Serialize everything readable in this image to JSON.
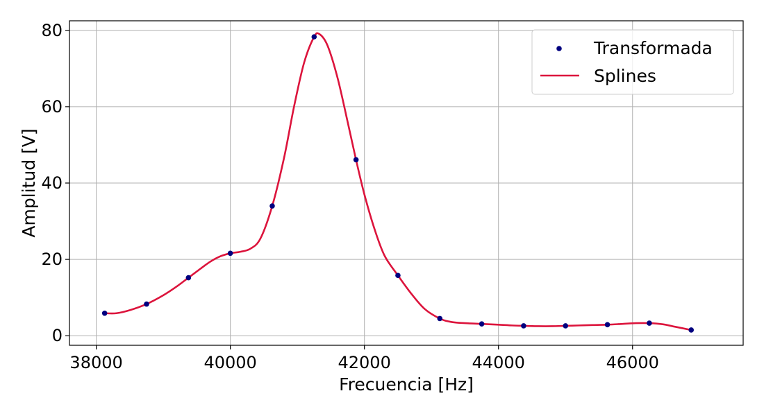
{
  "chart_data": {
    "type": "line",
    "title": "",
    "xlabel": "Frecuencia [Hz]",
    "ylabel": "Amplitud [V]",
    "xlim": [
      37600,
      47650
    ],
    "ylim": [
      -2.5,
      82.5
    ],
    "xticks": [
      38000,
      40000,
      42000,
      44000,
      46000
    ],
    "yticks": [
      0,
      20,
      40,
      60,
      80
    ],
    "grid": true,
    "legend_position": "top-right",
    "colors": {
      "points": "#00007f",
      "spline": "#dc143c",
      "grid": "#b0b0b0"
    },
    "series": [
      {
        "name": "Transformada",
        "kind": "scatter",
        "x": [
          38125,
          38750,
          39375,
          40000,
          40625,
          41250,
          41875,
          42500,
          43125,
          43750,
          44375,
          45000,
          45625,
          46250,
          46875
        ],
        "y": [
          5.9,
          8.3,
          15.2,
          21.6,
          34.0,
          78.3,
          46.1,
          15.8,
          4.5,
          3.1,
          2.6,
          2.6,
          2.9,
          3.3,
          1.5
        ]
      },
      {
        "name": "Splines",
        "kind": "line",
        "x": [
          38125,
          38300,
          38500,
          38750,
          39000,
          39200,
          39375,
          39550,
          39700,
          39850,
          40000,
          40150,
          40300,
          40450,
          40625,
          40800,
          40950,
          41100,
          41250,
          41330,
          41450,
          41600,
          41750,
          41875,
          42000,
          42150,
          42300,
          42500,
          42700,
          42900,
          43125,
          43300,
          43500,
          43750,
          44000,
          44200,
          44375,
          44600,
          44800,
          45000,
          45200,
          45400,
          45625,
          45850,
          46050,
          46250,
          46450,
          46650,
          46875
        ],
        "y": [
          5.9,
          5.9,
          6.7,
          8.3,
          10.6,
          12.9,
          15.2,
          17.5,
          19.4,
          20.8,
          21.6,
          22.0,
          22.8,
          25.5,
          34.0,
          46.5,
          60.0,
          71.5,
          78.3,
          79.0,
          76.0,
          67.5,
          56.0,
          46.1,
          37.0,
          28.0,
          21.0,
          15.8,
          11.0,
          7.0,
          4.5,
          3.6,
          3.3,
          3.1,
          2.9,
          2.7,
          2.6,
          2.5,
          2.5,
          2.6,
          2.7,
          2.8,
          2.9,
          3.1,
          3.3,
          3.3,
          3.0,
          2.3,
          1.5
        ]
      }
    ]
  }
}
